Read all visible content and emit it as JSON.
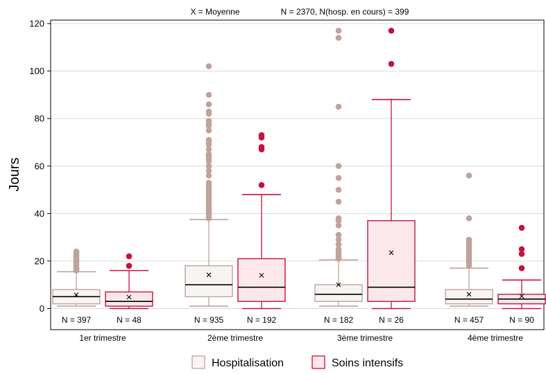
{
  "chart_data": {
    "type": "box",
    "header": {
      "mean_note": "X = Moyenne",
      "n_note": "N = 2370, N(hosp. en cours) = 399"
    },
    "ylabel": "Jours",
    "ylim": [
      -9,
      124
    ],
    "yticks": [
      0,
      20,
      40,
      60,
      80,
      100,
      120
    ],
    "grid": true,
    "legend_position": "bottom",
    "categories": [
      "1er trimestre",
      "2ème trimestre",
      "3ème trimestre",
      "4ème trimestre"
    ],
    "series": [
      {
        "name": "Hospitalisation",
        "stroke": "#bfa39c",
        "fill": "#f8f4f3",
        "boxes": [
          {
            "q1": 2,
            "median": 5,
            "q3": 8,
            "whisker_low": 1,
            "whisker_high": 15.5,
            "mean": 5.8,
            "n_label": "N = 397",
            "outliers": [
              16,
              16.5,
              17,
              17.5,
              18,
              18.5,
              19,
              19.5,
              20,
              20.5,
              21,
              21.5,
              22,
              22.5,
              23,
              23.5,
              24
            ]
          },
          {
            "q1": 5,
            "median": 10,
            "q3": 18,
            "whisker_low": 1,
            "whisker_high": 37.5,
            "mean": 14.2,
            "n_label": "N = 935",
            "outliers": [
              38,
              39,
              40,
              41,
              42,
              43,
              44,
              45,
              46,
              47,
              48,
              49,
              50,
              51,
              52,
              53,
              56,
              58,
              60,
              62,
              63,
              64,
              65,
              67,
              69,
              70,
              71,
              75,
              77,
              78,
              79,
              82,
              83,
              86,
              90,
              102
            ]
          },
          {
            "q1": 3,
            "median": 6,
            "q3": 10,
            "whisker_low": 1,
            "whisker_high": 20.5,
            "mean": 10,
            "n_label": "N = 182",
            "outliers": [
              21,
              22,
              23,
              24,
              25,
              27,
              29,
              31,
              35,
              37,
              38,
              45,
              50,
              55,
              60,
              85,
              114,
              117
            ]
          },
          {
            "q1": 2,
            "median": 4,
            "q3": 8,
            "whisker_low": 1,
            "whisker_high": 17,
            "mean": 6,
            "n_label": "N = 457",
            "outliers": [
              18,
              19,
              20,
              21,
              22,
              23,
              24,
              25,
              26,
              27,
              28,
              29,
              38,
              56
            ]
          }
        ]
      },
      {
        "name": "Soins intensifs",
        "stroke": "#c8103e",
        "fill": "#fbe8ec",
        "boxes": [
          {
            "q1": 1,
            "median": 3,
            "q3": 7,
            "whisker_low": 0,
            "whisker_high": 16,
            "mean": 4.8,
            "n_label": "N = 48",
            "outliers": [
              18,
              22
            ]
          },
          {
            "q1": 3,
            "median": 9,
            "q3": 21,
            "whisker_low": 0,
            "whisker_high": 48,
            "mean": 14,
            "n_label": "N = 192",
            "outliers": [
              52,
              67,
              68,
              72,
              73
            ]
          },
          {
            "q1": 3,
            "median": 9,
            "q3": 37,
            "whisker_low": 0,
            "whisker_high": 88,
            "mean": 23.5,
            "n_label": "N = 26",
            "outliers": [
              103,
              117
            ]
          },
          {
            "q1": 2,
            "median": 4,
            "q3": 6,
            "whisker_low": 0,
            "whisker_high": 12,
            "mean": 5.2,
            "n_label": "N = 90",
            "outliers": [
              17,
              23,
              25,
              34
            ]
          }
        ]
      }
    ]
  }
}
